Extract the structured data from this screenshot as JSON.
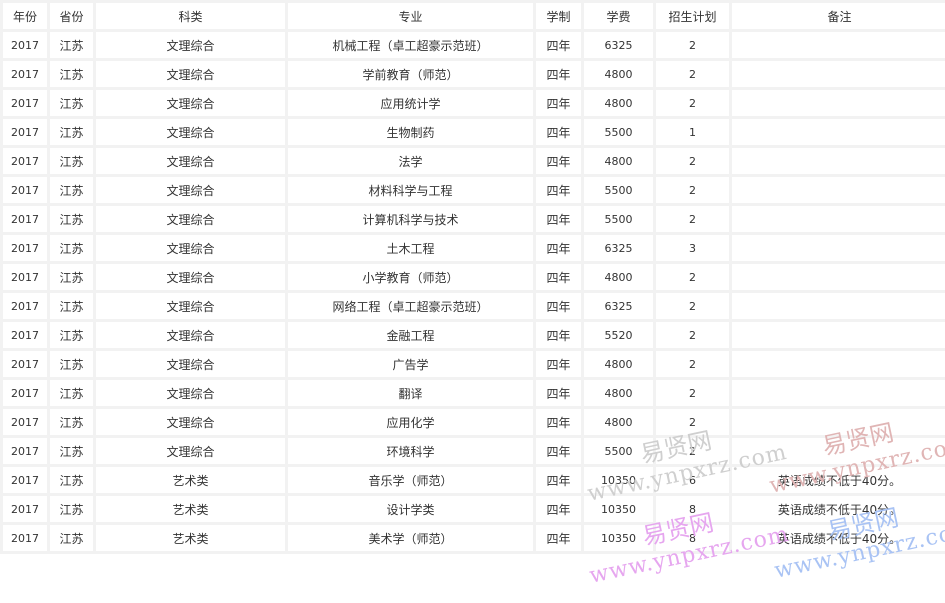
{
  "table": {
    "headers": [
      "年份",
      "省份",
      "科类",
      "专业",
      "学制",
      "学费",
      "招生计划",
      "备注"
    ],
    "rows": [
      [
        "2017",
        "江苏",
        "文理综合",
        "机械工程（卓工超豪示范班）",
        "四年",
        "6325",
        "2",
        ""
      ],
      [
        "2017",
        "江苏",
        "文理综合",
        "学前教育（师范）",
        "四年",
        "4800",
        "2",
        ""
      ],
      [
        "2017",
        "江苏",
        "文理综合",
        "应用统计学",
        "四年",
        "4800",
        "2",
        ""
      ],
      [
        "2017",
        "江苏",
        "文理综合",
        "生物制药",
        "四年",
        "5500",
        "1",
        ""
      ],
      [
        "2017",
        "江苏",
        "文理综合",
        "法学",
        "四年",
        "4800",
        "2",
        ""
      ],
      [
        "2017",
        "江苏",
        "文理综合",
        "材料科学与工程",
        "四年",
        "5500",
        "2",
        ""
      ],
      [
        "2017",
        "江苏",
        "文理综合",
        "计算机科学与技术",
        "四年",
        "5500",
        "2",
        ""
      ],
      [
        "2017",
        "江苏",
        "文理综合",
        "土木工程",
        "四年",
        "6325",
        "3",
        ""
      ],
      [
        "2017",
        "江苏",
        "文理综合",
        "小学教育（师范）",
        "四年",
        "4800",
        "2",
        ""
      ],
      [
        "2017",
        "江苏",
        "文理综合",
        "网络工程（卓工超豪示范班）",
        "四年",
        "6325",
        "2",
        ""
      ],
      [
        "2017",
        "江苏",
        "文理综合",
        "金融工程",
        "四年",
        "5520",
        "2",
        ""
      ],
      [
        "2017",
        "江苏",
        "文理综合",
        "广告学",
        "四年",
        "4800",
        "2",
        ""
      ],
      [
        "2017",
        "江苏",
        "文理综合",
        "翻译",
        "四年",
        "4800",
        "2",
        ""
      ],
      [
        "2017",
        "江苏",
        "文理综合",
        "应用化学",
        "四年",
        "4800",
        "2",
        ""
      ],
      [
        "2017",
        "江苏",
        "文理综合",
        "环境科学",
        "四年",
        "5500",
        "2",
        ""
      ],
      [
        "2017",
        "江苏",
        "艺术类",
        "音乐学（师范）",
        "四年",
        "10350",
        "6",
        "英语成绩不低于40分。"
      ],
      [
        "2017",
        "江苏",
        "艺术类",
        "设计学类",
        "四年",
        "10350",
        "8",
        "英语成绩不低于40分。"
      ],
      [
        "2017",
        "江苏",
        "艺术类",
        "美术学（师范）",
        "四年",
        "10350",
        "8",
        "英语成绩不低于40分。"
      ]
    ]
  },
  "watermark": {
    "name": "易贤网",
    "url": "www.ynpxrz.com",
    "colors": [
      "#cccccc",
      "#e3b7b7",
      "#e8a8f0",
      "#a8c4f5"
    ]
  }
}
